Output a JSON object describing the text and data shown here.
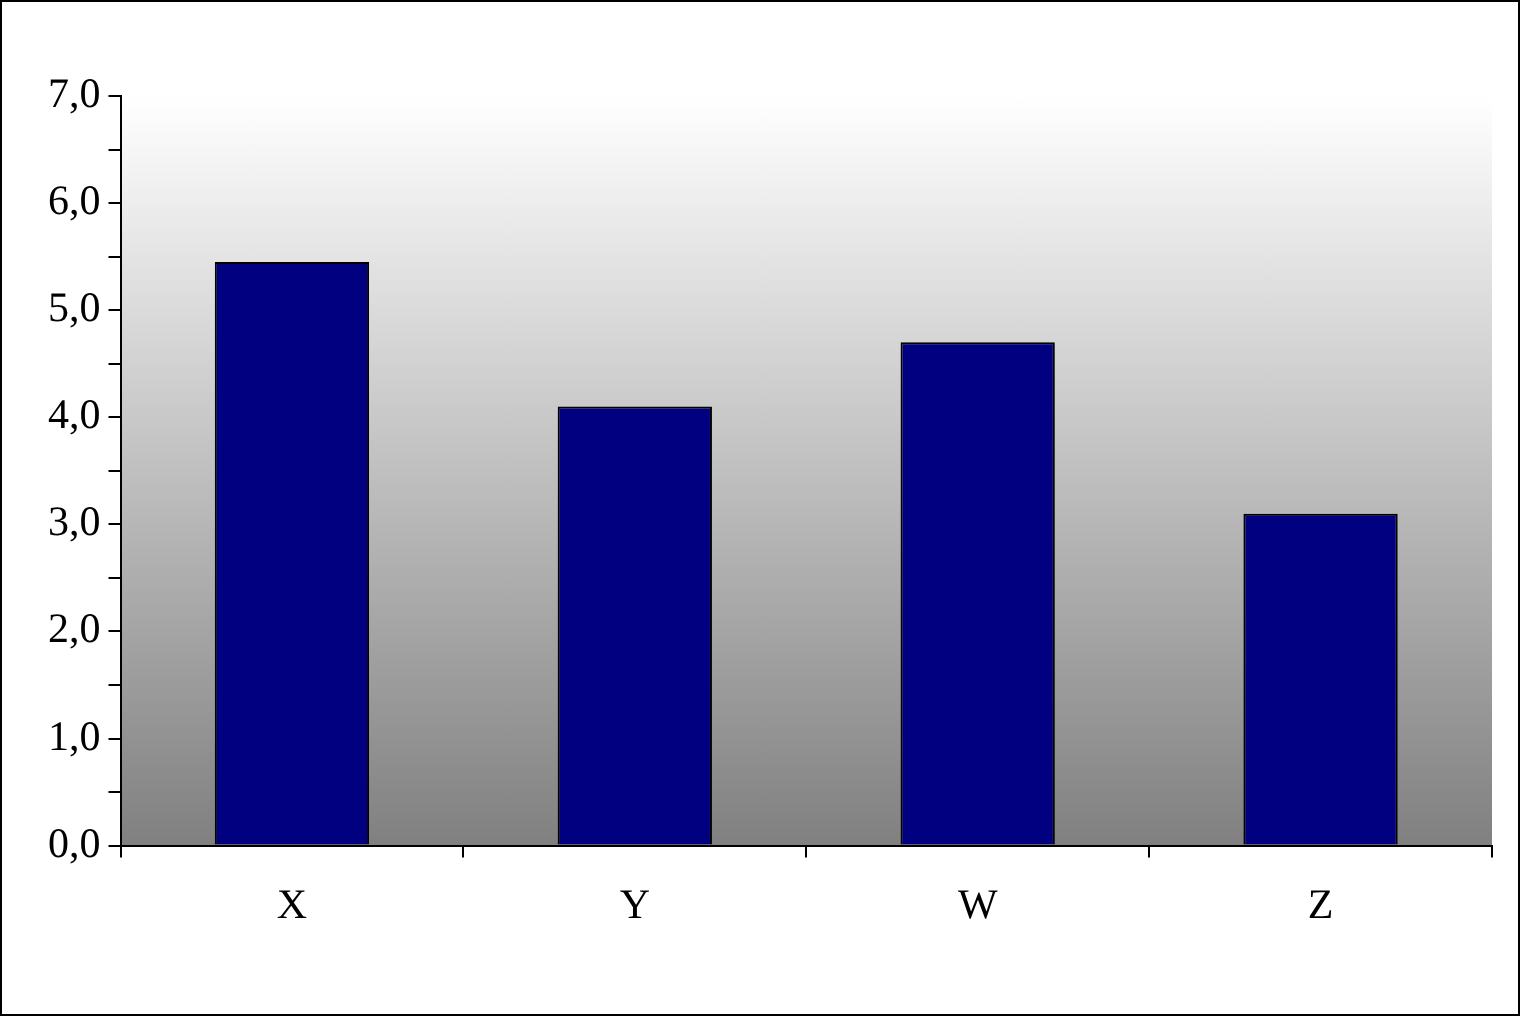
{
  "chart_data": {
    "type": "bar",
    "categories": [
      "X",
      "Y",
      "W",
      "Z"
    ],
    "values": [
      5.45,
      4.1,
      4.7,
      3.1
    ],
    "color": "#000080",
    "ylim": [
      0,
      7
    ],
    "yticks": [
      {
        "value": 0,
        "label": "0,0"
      },
      {
        "value": 0.5,
        "label": null
      },
      {
        "value": 1,
        "label": "1,0"
      },
      {
        "value": 1.5,
        "label": null
      },
      {
        "value": 2,
        "label": "2,0"
      },
      {
        "value": 2.5,
        "label": null
      },
      {
        "value": 3,
        "label": "3,0"
      },
      {
        "value": 3.5,
        "label": null
      },
      {
        "value": 4,
        "label": "4,0"
      },
      {
        "value": 4.5,
        "label": null
      },
      {
        "value": 5,
        "label": "5,0"
      },
      {
        "value": 5.5,
        "label": null
      },
      {
        "value": 6,
        "label": "6,0"
      },
      {
        "value": 6.5,
        "label": null
      },
      {
        "value": 7,
        "label": "7,0"
      }
    ],
    "grid": false,
    "legend": false
  }
}
